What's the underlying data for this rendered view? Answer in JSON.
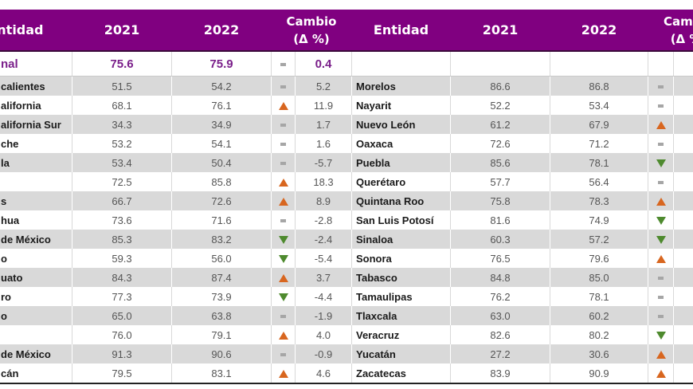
{
  "colors": {
    "header_bg": "#800080",
    "header_text": "#ffffff",
    "national_text": "#7a1f8a",
    "row_alt_bg": "#d9d9d9",
    "up_color": "#d8661f",
    "down_color": "#4e8a2e",
    "equal_color": "#a6a6a6"
  },
  "header": {
    "entidad": "Entidad",
    "year1": "2021",
    "year2": "2022",
    "change": "Cambio",
    "change_unit": "(Δ %)",
    "change_right_clipped": "Cam",
    "change_unit_right_clipped": "(Δ %"
  },
  "national": {
    "name": "nal",
    "y2021": "75.6",
    "y2022": "75.9",
    "trend": "equal",
    "change": "0.4"
  },
  "left_rows": [
    {
      "name": "calientes",
      "y2021": "51.5",
      "y2022": "54.2",
      "trend": "equal",
      "change": "5.2"
    },
    {
      "name": "alifornia",
      "y2021": "68.1",
      "y2022": "76.1",
      "trend": "up",
      "change": "11.9"
    },
    {
      "name": "alifornia Sur",
      "y2021": "34.3",
      "y2022": "34.9",
      "trend": "equal",
      "change": "1.7"
    },
    {
      "name": "che",
      "y2021": "53.2",
      "y2022": "54.1",
      "trend": "equal",
      "change": "1.6"
    },
    {
      "name": "la",
      "y2021": "53.4",
      "y2022": "50.4",
      "trend": "equal",
      "change": "-5.7"
    },
    {
      "name": "",
      "y2021": "72.5",
      "y2022": "85.8",
      "trend": "up",
      "change": "18.3"
    },
    {
      "name": "s",
      "y2021": "66.7",
      "y2022": "72.6",
      "trend": "up",
      "change": "8.9"
    },
    {
      "name": "hua",
      "y2021": "73.6",
      "y2022": "71.6",
      "trend": "equal",
      "change": "-2.8"
    },
    {
      "name": "de México",
      "y2021": "85.3",
      "y2022": "83.2",
      "trend": "down",
      "change": "-2.4"
    },
    {
      "name": "o",
      "y2021": "59.3",
      "y2022": "56.0",
      "trend": "down",
      "change": "-5.4"
    },
    {
      "name": "uato",
      "y2021": "84.3",
      "y2022": "87.4",
      "trend": "up",
      "change": "3.7"
    },
    {
      "name": "ro",
      "y2021": "77.3",
      "y2022": "73.9",
      "trend": "down",
      "change": "-4.4"
    },
    {
      "name": "o",
      "y2021": "65.0",
      "y2022": "63.8",
      "trend": "equal",
      "change": "-1.9"
    },
    {
      "name": "",
      "y2021": "76.0",
      "y2022": "79.1",
      "trend": "up",
      "change": "4.0"
    },
    {
      "name": "de México",
      "y2021": "91.3",
      "y2022": "90.6",
      "trend": "equal",
      "change": "-0.9"
    },
    {
      "name": "cán",
      "y2021": "79.5",
      "y2022": "83.1",
      "trend": "up",
      "change": "4.6"
    }
  ],
  "right_rows": [
    {
      "name": "Morelos",
      "y2021": "86.6",
      "y2022": "86.8",
      "trend": "equal"
    },
    {
      "name": "Nayarit",
      "y2021": "52.2",
      "y2022": "53.4",
      "trend": "equal"
    },
    {
      "name": "Nuevo León",
      "y2021": "61.2",
      "y2022": "67.9",
      "trend": "up"
    },
    {
      "name": "Oaxaca",
      "y2021": "72.6",
      "y2022": "71.2",
      "trend": "equal"
    },
    {
      "name": "Puebla",
      "y2021": "85.6",
      "y2022": "78.1",
      "trend": "down"
    },
    {
      "name": "Querétaro",
      "y2021": "57.7",
      "y2022": "56.4",
      "trend": "equal"
    },
    {
      "name": "Quintana Roo",
      "y2021": "75.8",
      "y2022": "78.3",
      "trend": "up"
    },
    {
      "name": "San Luis Potosí",
      "y2021": "81.6",
      "y2022": "74.9",
      "trend": "down"
    },
    {
      "name": "Sinaloa",
      "y2021": "60.3",
      "y2022": "57.2",
      "trend": "down"
    },
    {
      "name": "Sonora",
      "y2021": "76.5",
      "y2022": "79.6",
      "trend": "up"
    },
    {
      "name": "Tabasco",
      "y2021": "84.8",
      "y2022": "85.0",
      "trend": "equal"
    },
    {
      "name": "Tamaulipas",
      "y2021": "76.2",
      "y2022": "78.1",
      "trend": "equal"
    },
    {
      "name": "Tlaxcala",
      "y2021": "63.0",
      "y2022": "60.2",
      "trend": "equal"
    },
    {
      "name": "Veracruz",
      "y2021": "82.6",
      "y2022": "80.2",
      "trend": "down"
    },
    {
      "name": "Yucatán",
      "y2021": "27.2",
      "y2022": "30.6",
      "trend": "up"
    },
    {
      "name": "Zacatecas",
      "y2021": "83.9",
      "y2022": "90.9",
      "trend": "up"
    }
  ]
}
